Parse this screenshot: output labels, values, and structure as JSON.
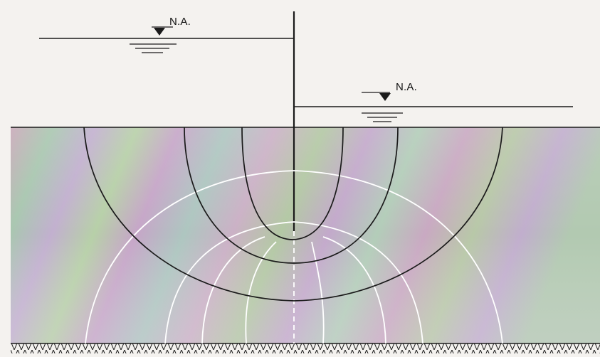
{
  "water_levels": {
    "upstream": {
      "label": "N.A."
    },
    "downstream": {
      "label": "N.A."
    }
  },
  "colors": {
    "ink": "#1a1a1a",
    "soil_base": "#b9b2c6",
    "equipotential": "#ffffff",
    "sky": "#f4f2ef"
  },
  "elements": {
    "flow_line_count": 4,
    "equipotential_line_count": 7
  }
}
